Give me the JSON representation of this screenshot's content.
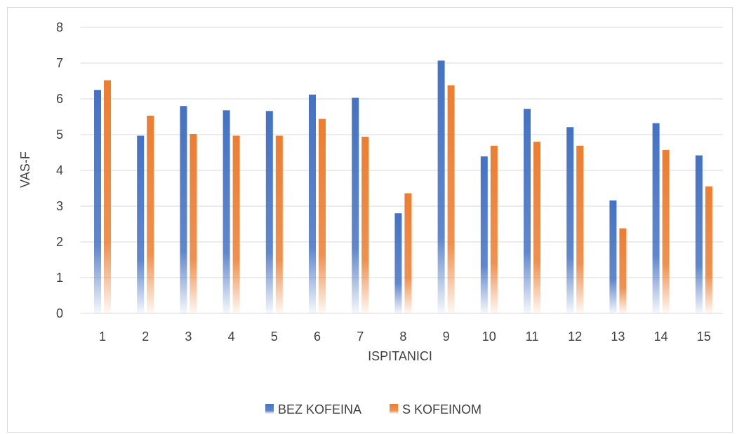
{
  "chart_data": {
    "type": "bar",
    "title": "",
    "xlabel": "ISPITANICI",
    "ylabel": "VAS-F",
    "ylim": [
      0,
      8
    ],
    "yticks": [
      0,
      1,
      2,
      3,
      4,
      5,
      6,
      7,
      8
    ],
    "grid": true,
    "legend_position": "bottom",
    "categories": [
      "1",
      "2",
      "3",
      "4",
      "5",
      "6",
      "7",
      "8",
      "9",
      "10",
      "11",
      "12",
      "13",
      "14",
      "15"
    ],
    "series": [
      {
        "name": "BEZ KOFEINA",
        "color": "#4472C4",
        "values": [
          6.25,
          4.97,
          5.8,
          5.68,
          5.66,
          6.12,
          6.03,
          2.8,
          7.07,
          4.39,
          5.72,
          5.21,
          3.16,
          5.32,
          4.42
        ]
      },
      {
        "name": "S KOFEINOM",
        "color": "#ED7D31",
        "values": [
          6.52,
          5.53,
          5.02,
          4.97,
          4.97,
          5.44,
          4.94,
          3.36,
          6.38,
          4.69,
          4.8,
          4.69,
          2.38,
          4.57,
          3.55
        ]
      }
    ]
  }
}
